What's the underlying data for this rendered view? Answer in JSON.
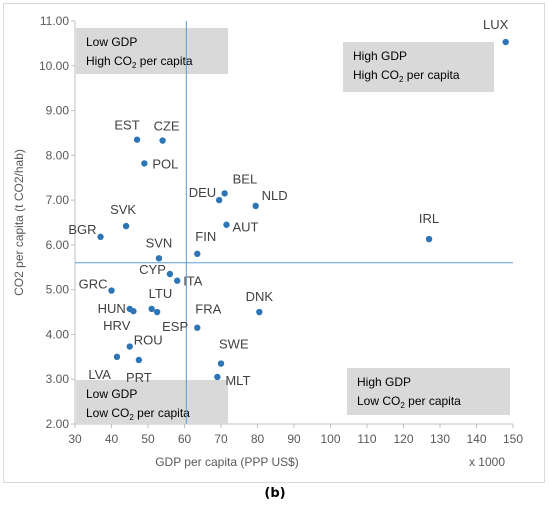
{
  "caption": "(b)",
  "chart_data": {
    "type": "scatter",
    "title": "",
    "xlabel": "GDP per capita (PPP US$)",
    "x_multiplier": "x 1000",
    "ylabel": "CO2 per capita (t CO2/hab)",
    "xlim": [
      30,
      150
    ],
    "ylim": [
      2,
      11
    ],
    "xticks": [
      30,
      40,
      50,
      60,
      70,
      80,
      90,
      100,
      110,
      120,
      130,
      140,
      150
    ],
    "yticks": [
      "2.00",
      "3.00",
      "4.00",
      "5.00",
      "6.00",
      "7.00",
      "8.00",
      "9.00",
      "10.00",
      "11.00"
    ],
    "grid": false,
    "reference_lines": {
      "x": 60.5,
      "y": 5.6
    },
    "point_color": "#2e75b6",
    "line_color": "#5b9bd5",
    "points": [
      {
        "label": "LUX",
        "x": 148,
        "y": 10.53
      },
      {
        "label": "EST",
        "x": 47,
        "y": 8.35
      },
      {
        "label": "CZE",
        "x": 54,
        "y": 8.33
      },
      {
        "label": "POL",
        "x": 49,
        "y": 7.82
      },
      {
        "label": "BEL",
        "x": 71,
        "y": 7.15
      },
      {
        "label": "DEU",
        "x": 69.5,
        "y": 7.0
      },
      {
        "label": "NLD",
        "x": 79.5,
        "y": 6.87
      },
      {
        "label": "AUT",
        "x": 71.5,
        "y": 6.45
      },
      {
        "label": "SVK",
        "x": 44,
        "y": 6.42
      },
      {
        "label": "BGR",
        "x": 37,
        "y": 6.18
      },
      {
        "label": "IRL",
        "x": 127,
        "y": 6.13
      },
      {
        "label": "FIN",
        "x": 63.5,
        "y": 5.8
      },
      {
        "label": "SVN",
        "x": 53,
        "y": 5.7
      },
      {
        "label": "CYP",
        "x": 56,
        "y": 5.35
      },
      {
        "label": "ITA",
        "x": 58,
        "y": 5.2
      },
      {
        "label": "GRC",
        "x": 40,
        "y": 4.98
      },
      {
        "label": "LTU",
        "x": 51,
        "y": 4.57
      },
      {
        "label": "ESP",
        "x": 52.5,
        "y": 4.5
      },
      {
        "label": "HUN",
        "x": 45,
        "y": 4.57
      },
      {
        "label": "HRV",
        "x": 46,
        "y": 4.52
      },
      {
        "label": "DNK",
        "x": 80.5,
        "y": 4.5
      },
      {
        "label": "FRA",
        "x": 63.5,
        "y": 4.15
      },
      {
        "label": "ROU",
        "x": 45,
        "y": 3.73
      },
      {
        "label": "LVA",
        "x": 41.5,
        "y": 3.5
      },
      {
        "label": "PRT",
        "x": 47.5,
        "y": 3.43
      },
      {
        "label": "SWE",
        "x": 70,
        "y": 3.35
      },
      {
        "label": "MLT",
        "x": 69,
        "y": 3.05
      }
    ],
    "quadrant_labels": [
      {
        "line1": "Low GDP",
        "line2_main": "High CO",
        "line2_sub": "2",
        "line2_rest": " per capita"
      },
      {
        "line1": "High GDP",
        "line2_main": "High CO",
        "line2_sub": "2",
        "line2_rest": " per capita"
      },
      {
        "line1": "Low GDP",
        "line2_main": "Low CO",
        "line2_sub": "2",
        "line2_rest": " per capita"
      },
      {
        "line1": "High GDP",
        "line2_main": "Low CO",
        "line2_sub": "2",
        "line2_rest": " per capita"
      }
    ]
  }
}
